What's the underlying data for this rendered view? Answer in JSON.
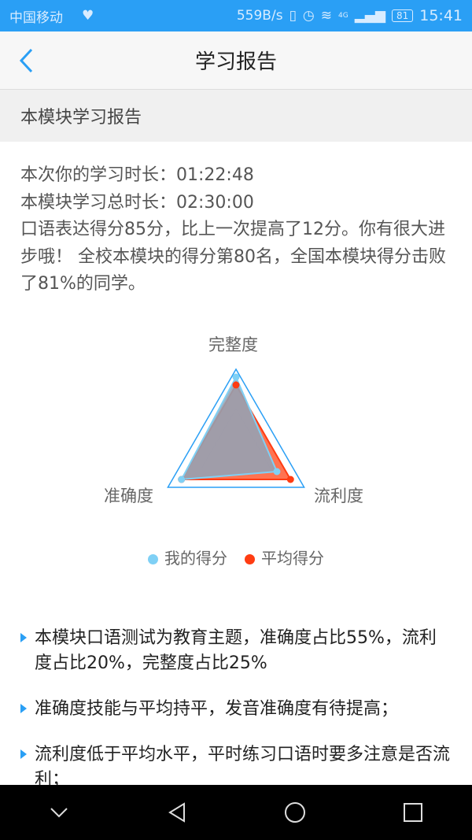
{
  "status_bar": {
    "carrier": "中国移动",
    "net_speed": "559B/s",
    "network": "4G",
    "battery": "81",
    "time": "15:41"
  },
  "header": {
    "title": "学习报告",
    "back_icon": "chevron-left-icon"
  },
  "section": {
    "title": "本模块学习报告"
  },
  "summary": {
    "line1_label": "本次你的学习时长：",
    "line1_value": "01:22:48",
    "line2_label": "本模块学习总时长：",
    "line2_value": "02:30:00",
    "paragraph": "口语表达得分85分，比上一次提高了12分。你有很大进步哦！ 全校本模块的得分第80名，全国本模块得分击败了81%的同学。"
  },
  "chart_data": {
    "type": "radar",
    "axes": [
      "完整度",
      "流利度",
      "准确度"
    ],
    "range": [
      0,
      100
    ],
    "grid_levels": [
      50,
      100
    ],
    "series": [
      {
        "name": "我的得分",
        "color": "#7fd0f5",
        "values": [
          90,
          60,
          80
        ]
      },
      {
        "name": "平均得分",
        "color": "#ff3c12",
        "values": [
          80,
          80,
          80
        ]
      }
    ],
    "legend_position": "bottom"
  },
  "notes": [
    "本模块口语测试为教育主题，准确度占比55%，流利度占比20%，完整度占比25%",
    "准确度技能与平均持平，发音准确度有待提高；",
    "流利度低于平均水平，平时练习口语时要多注意是否流利；"
  ]
}
